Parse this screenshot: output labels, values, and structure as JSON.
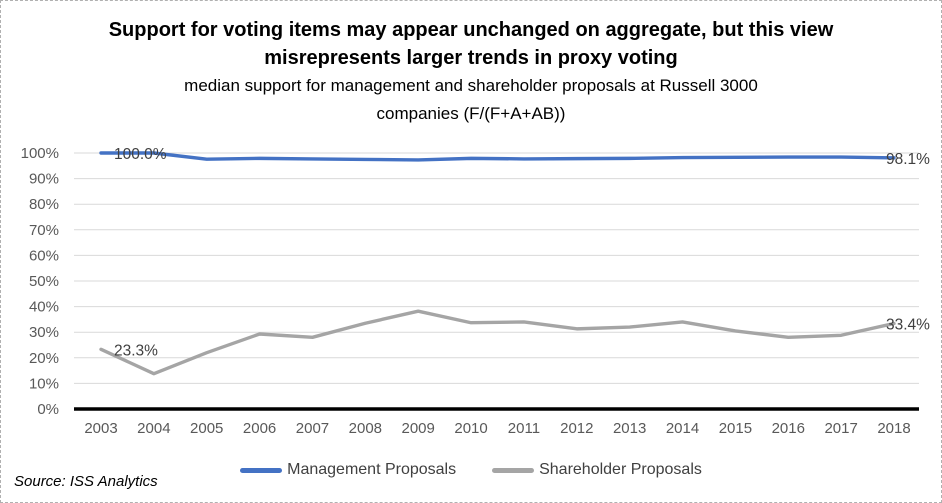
{
  "chart_data": {
    "type": "line",
    "title_lines": [
      "Support for voting items may appear unchanged on aggregate, but this view",
      "misrepresents larger trends in proxy voting"
    ],
    "subtitle_lines": [
      "median support for management and shareholder proposals at Russell 3000",
      "companies (F/(F+A+AB))"
    ],
    "source": "Source: ISS Analytics",
    "x": [
      2003,
      2004,
      2005,
      2006,
      2007,
      2008,
      2009,
      2010,
      2011,
      2012,
      2013,
      2014,
      2015,
      2016,
      2017,
      2018
    ],
    "series": [
      {
        "name": "Management Proposals",
        "color": "#4472C4",
        "values": [
          100.0,
          100.0,
          97.6,
          97.9,
          97.7,
          97.5,
          97.3,
          97.9,
          97.7,
          97.8,
          97.9,
          98.2,
          98.3,
          98.4,
          98.4,
          98.1
        ]
      },
      {
        "name": "Shareholder Proposals",
        "color": "#A5A5A5",
        "values": [
          23.3,
          13.8,
          22.0,
          29.3,
          28.0,
          33.5,
          38.2,
          33.7,
          34.0,
          31.3,
          32.0,
          34.0,
          30.5,
          28.0,
          28.8,
          33.4
        ]
      }
    ],
    "annotations": [
      {
        "series": 0,
        "year": 2003,
        "label": "100.0%"
      },
      {
        "series": 0,
        "year": 2018,
        "label": "98.1%"
      },
      {
        "series": 1,
        "year": 2003,
        "label": "23.3%"
      },
      {
        "series": 1,
        "year": 2018,
        "label": "33.4%"
      }
    ],
    "ylim": [
      0,
      100
    ],
    "ytick_step": 10,
    "ytick_suffix": "%",
    "grid": true,
    "legend_position": "bottom",
    "xlabel": "",
    "ylabel": "",
    "axis_color": "#000000",
    "gridline_color": "#D9D9D9",
    "tick_label_color": "#595959",
    "data_label_color": "#404040"
  }
}
